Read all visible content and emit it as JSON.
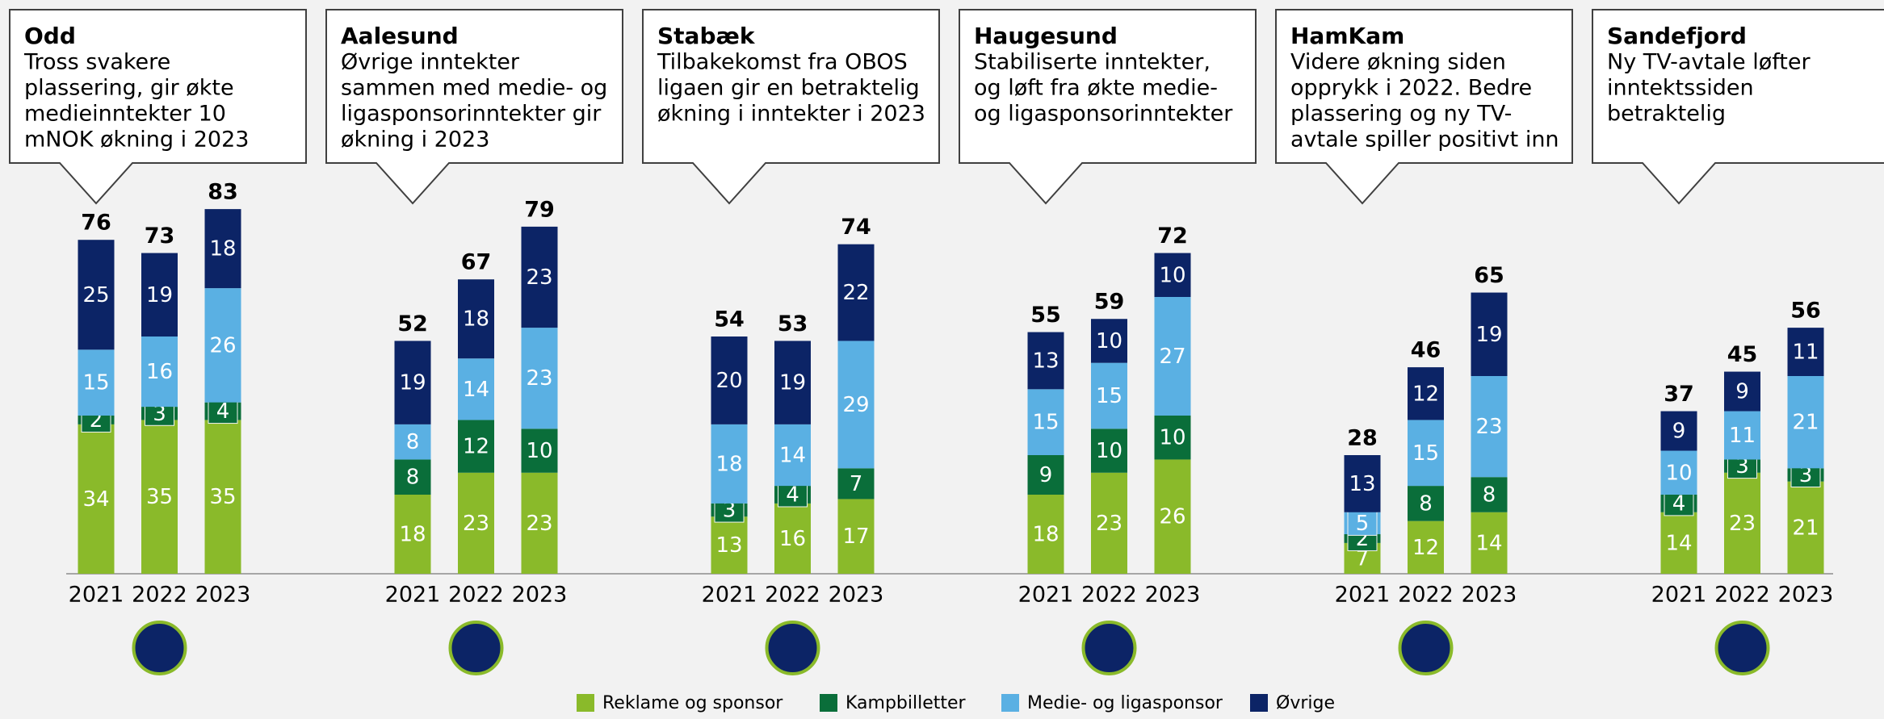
{
  "chart_data": [
    {
      "type": "bar",
      "stacked": true,
      "title": "Odd",
      "subtitle": [
        "Tross svakere",
        "plassering, gir økte",
        "medieinntekter 10",
        "mNOK økning i 2023"
      ],
      "categories": [
        "2021",
        "2022",
        "2023"
      ],
      "ylim": [
        0,
        90
      ],
      "totals": [
        76,
        73,
        83
      ],
      "series": [
        {
          "name": "Reklame og sponsor",
          "color": "#8aba2a",
          "values": [
            34,
            35,
            35
          ]
        },
        {
          "name": "Kampbilletter",
          "color": "#0a6e3a",
          "values": [
            2,
            3,
            4
          ]
        },
        {
          "name": "Medie- og ligasponsor",
          "color": "#5ab0e3",
          "values": [
            15,
            16,
            26
          ]
        },
        {
          "name": "Øvrige",
          "color": "#0c2466",
          "values": [
            25,
            19,
            18
          ]
        }
      ]
    },
    {
      "type": "bar",
      "stacked": true,
      "title": "Aalesund",
      "subtitle": [
        "Øvrige inntekter",
        "sammen med medie- og",
        "ligasponsorinntekter gir",
        "økning i 2023"
      ],
      "categories": [
        "2021",
        "2022",
        "2023"
      ],
      "ylim": [
        0,
        90
      ],
      "totals": [
        52,
        67,
        79
      ],
      "series": [
        {
          "name": "Reklame og sponsor",
          "color": "#8aba2a",
          "values": [
            18,
            23,
            23
          ]
        },
        {
          "name": "Kampbilletter",
          "color": "#0a6e3a",
          "values": [
            8,
            12,
            10
          ]
        },
        {
          "name": "Medie- og ligasponsor",
          "color": "#5ab0e3",
          "values": [
            8,
            14,
            23
          ]
        },
        {
          "name": "Øvrige",
          "color": "#0c2466",
          "values": [
            19,
            18,
            23
          ]
        }
      ]
    },
    {
      "type": "bar",
      "stacked": true,
      "title": "Stabæk",
      "subtitle": [
        "Tilbakekomst fra OBOS",
        "ligaen gir en betraktelig",
        "økning i inntekter i 2023"
      ],
      "categories": [
        "2021",
        "2022",
        "2023"
      ],
      "ylim": [
        0,
        90
      ],
      "totals": [
        54,
        53,
        74
      ],
      "series": [
        {
          "name": "Reklame og sponsor",
          "color": "#8aba2a",
          "values": [
            13,
            16,
            17
          ]
        },
        {
          "name": "Kampbilletter",
          "color": "#0a6e3a",
          "values": [
            3,
            4,
            7
          ]
        },
        {
          "name": "Medie- og ligasponsor",
          "color": "#5ab0e3",
          "values": [
            18,
            14,
            29
          ]
        },
        {
          "name": "Øvrige",
          "color": "#0c2466",
          "values": [
            20,
            19,
            22
          ]
        }
      ]
    },
    {
      "type": "bar",
      "stacked": true,
      "title": "Haugesund",
      "subtitle": [
        "Stabiliserte inntekter,",
        "og løft fra økte medie-",
        "og ligasponsorinntekter"
      ],
      "categories": [
        "2021",
        "2022",
        "2023"
      ],
      "ylim": [
        0,
        90
      ],
      "totals": [
        55,
        59,
        72
      ],
      "series": [
        {
          "name": "Reklame og sponsor",
          "color": "#8aba2a",
          "values": [
            18,
            23,
            26
          ]
        },
        {
          "name": "Kampbilletter",
          "color": "#0a6e3a",
          "values": [
            9,
            10,
            10
          ]
        },
        {
          "name": "Medie- og ligasponsor",
          "color": "#5ab0e3",
          "values": [
            15,
            15,
            27
          ]
        },
        {
          "name": "Øvrige",
          "color": "#0c2466",
          "values": [
            13,
            10,
            10
          ]
        }
      ]
    },
    {
      "type": "bar",
      "stacked": true,
      "title": "HamKam",
      "subtitle": [
        "Videre økning siden",
        "opprykk i 2022. Bedre",
        "plassering og ny TV-",
        "avtale spiller positivt inn"
      ],
      "categories": [
        "2021",
        "2022",
        "2023"
      ],
      "ylim": [
        0,
        90
      ],
      "totals": [
        28,
        46,
        65
      ],
      "series": [
        {
          "name": "Reklame og sponsor",
          "color": "#8aba2a",
          "values": [
            7,
            12,
            14
          ]
        },
        {
          "name": "Kampbilletter",
          "color": "#0a6e3a",
          "values": [
            2,
            8,
            8
          ]
        },
        {
          "name": "Medie- og ligasponsor",
          "color": "#5ab0e3",
          "values": [
            5,
            15,
            23
          ]
        },
        {
          "name": "Øvrige",
          "color": "#0c2466",
          "values": [
            13,
            12,
            19
          ]
        }
      ]
    },
    {
      "type": "bar",
      "stacked": true,
      "title": "Sandefjord",
      "subtitle": [
        "Ny TV-avtale løfter",
        "inntektssiden",
        "betraktelig"
      ],
      "categories": [
        "2021",
        "2022",
        "2023"
      ],
      "ylim": [
        0,
        90
      ],
      "totals": [
        37,
        45,
        56
      ],
      "series": [
        {
          "name": "Reklame og sponsor",
          "color": "#8aba2a",
          "values": [
            14,
            23,
            21
          ]
        },
        {
          "name": "Kampbilletter",
          "color": "#0a6e3a",
          "values": [
            4,
            3,
            3
          ]
        },
        {
          "name": "Medie- og ligasponsor",
          "color": "#5ab0e3",
          "values": [
            10,
            11,
            21
          ]
        },
        {
          "name": "Øvrige",
          "color": "#0c2466",
          "values": [
            9,
            9,
            11
          ]
        }
      ]
    }
  ]
}
